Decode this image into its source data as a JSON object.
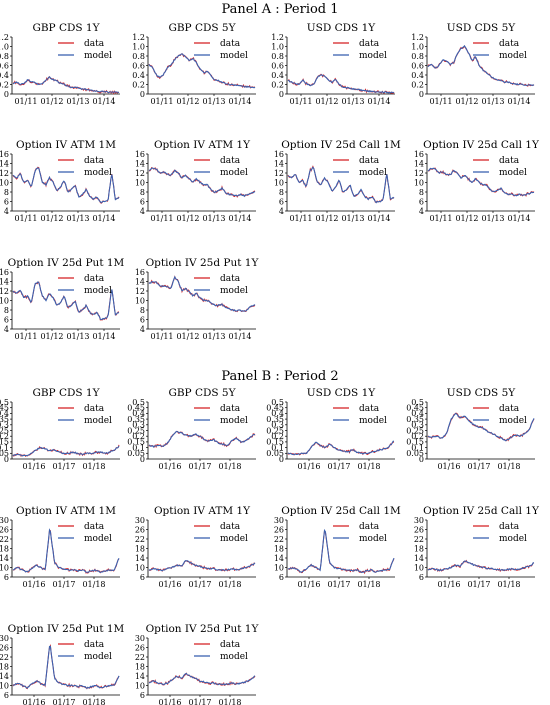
{
  "panels": [
    {
      "title": "Panel A : Period 1",
      "xticks": [
        "01/11",
        "01/12",
        "01/13",
        "01/14"
      ],
      "charts": [
        {
          "title": "GBP CDS 1Y",
          "yticks": [
            "0",
            "0.2",
            "0.4",
            "0.6",
            "0.8",
            "1.0",
            "1.2"
          ],
          "ylim": [
            0,
            1.2
          ],
          "profile": "cds_gbp1"
        },
        {
          "title": "GBP CDS 5Y",
          "yticks": [
            "0",
            "0.2",
            "0.4",
            "0.6",
            "0.8",
            "1.0",
            "1.2"
          ],
          "ylim": [
            0,
            1.2
          ],
          "profile": "cds_gbp5"
        },
        {
          "title": "USD CDS 1Y",
          "yticks": [
            "0",
            "0.2",
            "0.4",
            "0.6",
            "0.8",
            "1.0",
            "1.2"
          ],
          "ylim": [
            0,
            1.2
          ],
          "profile": "cds_usd1"
        },
        {
          "title": "USD CDS 5Y",
          "yticks": [
            "0",
            "0.2",
            "0.4",
            "0.6",
            "0.8",
            "1.0",
            "1.2"
          ],
          "ylim": [
            0,
            1.2
          ],
          "profile": "cds_usd5"
        },
        {
          "title": "Option IV ATM 1M",
          "yticks": [
            "4",
            "6",
            "8",
            "10",
            "12",
            "14",
            "16"
          ],
          "ylim": [
            4,
            16
          ],
          "profile": "iv_1m"
        },
        {
          "title": "Option IV ATM 1Y",
          "yticks": [
            "4",
            "6",
            "8",
            "10",
            "12",
            "14",
            "16"
          ],
          "ylim": [
            4,
            16
          ],
          "profile": "iv_1y"
        },
        {
          "title": "Option IV 25d Call 1M",
          "yticks": [
            "4",
            "6",
            "8",
            "10",
            "12",
            "14",
            "16"
          ],
          "ylim": [
            4,
            16
          ],
          "profile": "iv_1m"
        },
        {
          "title": "Option IV 25d Call 1Y",
          "yticks": [
            "4",
            "6",
            "8",
            "10",
            "12",
            "14",
            "16"
          ],
          "ylim": [
            4,
            16
          ],
          "profile": "iv_1y"
        },
        {
          "title": "Option IV 25d Put 1M",
          "yticks": [
            "4",
            "6",
            "8",
            "10",
            "12",
            "14",
            "16"
          ],
          "ylim": [
            4,
            16
          ],
          "profile": "iv_put1m"
        },
        {
          "title": "Option IV 25d Put 1Y",
          "yticks": [
            "4",
            "6",
            "8",
            "10",
            "12",
            "14",
            "16"
          ],
          "ylim": [
            4,
            16
          ],
          "profile": "iv_put1y"
        }
      ]
    },
    {
      "title": "Panel B : Period 2",
      "xticks": [
        "01/16",
        "01/17",
        "01/18"
      ],
      "charts": [
        {
          "title": "GBP CDS 1Y",
          "yticks": [
            "0",
            "0.05",
            "0.1",
            "0.15",
            "0.2",
            "0.25",
            "0.3",
            "0.35",
            "0.4",
            "0.45",
            "0.5"
          ],
          "ylim": [
            0,
            0.5
          ],
          "profile": "b_gbp1"
        },
        {
          "title": "GBP CDS 5Y",
          "yticks": [
            "0",
            "0.05",
            "0.1",
            "0.15",
            "0.2",
            "0.25",
            "0.3",
            "0.35",
            "0.4",
            "0.45",
            "0.5"
          ],
          "ylim": [
            0,
            0.5
          ],
          "profile": "b_gbp5"
        },
        {
          "title": "USD CDS 1Y",
          "yticks": [
            "0",
            "0.05",
            "0.1",
            "0.15",
            "0.2",
            "0.25",
            "0.3",
            "0.35",
            "0.4",
            "0.45",
            "0.5"
          ],
          "ylim": [
            0,
            0.5
          ],
          "profile": "b_usd1"
        },
        {
          "title": "USD CDS 5Y",
          "yticks": [
            "0",
            "0.05",
            "0.1",
            "0.15",
            "0.2",
            "0.25",
            "0.3",
            "0.35",
            "0.4",
            "0.45",
            "0.5"
          ],
          "ylim": [
            0,
            0.5
          ],
          "profile": "b_usd5"
        },
        {
          "title": "Option IV ATM 1M",
          "yticks": [
            "6",
            "10",
            "14",
            "18",
            "22",
            "26",
            "30"
          ],
          "ylim": [
            6,
            30
          ],
          "profile": "b_iv1m"
        },
        {
          "title": "Option IV ATM 1Y",
          "yticks": [
            "6",
            "10",
            "14",
            "18",
            "22",
            "26",
            "30"
          ],
          "ylim": [
            6,
            30
          ],
          "profile": "b_iv1y"
        },
        {
          "title": "Option IV 25d Call 1M",
          "yticks": [
            "6",
            "10",
            "14",
            "18",
            "22",
            "26",
            "30"
          ],
          "ylim": [
            6,
            30
          ],
          "profile": "b_iv1m"
        },
        {
          "title": "Option IV 25d Call 1Y",
          "yticks": [
            "6",
            "10",
            "14",
            "18",
            "22",
            "26",
            "30"
          ],
          "ylim": [
            6,
            30
          ],
          "profile": "b_iv1y"
        },
        {
          "title": "Option IV 25d Put 1M",
          "yticks": [
            "6",
            "10",
            "14",
            "18",
            "22",
            "26",
            "30"
          ],
          "ylim": [
            6,
            30
          ],
          "profile": "b_put1m"
        },
        {
          "title": "Option IV 25d Put 1Y",
          "yticks": [
            "6",
            "10",
            "14",
            "18",
            "22",
            "26",
            "30"
          ],
          "ylim": [
            6,
            30
          ],
          "profile": "b_put1y"
        }
      ]
    }
  ],
  "legend": {
    "data_label": "data",
    "model_label": "model"
  },
  "colors": {
    "data": "#d62728",
    "model": "#3b62b0"
  },
  "chart_data": {
    "type": "line",
    "series": [
      {
        "name": "data"
      },
      {
        "name": "model"
      }
    ],
    "profiles": {
      "cds_gbp1": [
        0.22,
        0.25,
        0.2,
        0.22,
        0.3,
        0.26,
        0.24,
        0.2,
        0.22,
        0.3,
        0.35,
        0.3,
        0.28,
        0.22,
        0.2,
        0.16,
        0.14,
        0.15,
        0.12,
        0.1,
        0.1,
        0.08,
        0.07,
        0.06,
        0.05,
        0.05,
        0.04,
        0.04,
        0.04,
        0.03
      ],
      "cds_gbp5": [
        0.62,
        0.55,
        0.4,
        0.35,
        0.42,
        0.55,
        0.62,
        0.72,
        0.8,
        0.85,
        0.78,
        0.7,
        0.75,
        0.65,
        0.52,
        0.45,
        0.48,
        0.38,
        0.3,
        0.28,
        0.25,
        0.22,
        0.2,
        0.2,
        0.18,
        0.17,
        0.16,
        0.15,
        0.15,
        0.14
      ],
      "cds_usd1": [
        0.28,
        0.25,
        0.22,
        0.2,
        0.3,
        0.22,
        0.18,
        0.2,
        0.35,
        0.4,
        0.38,
        0.3,
        0.25,
        0.3,
        0.2,
        0.15,
        0.13,
        0.12,
        0.1,
        0.1,
        0.08,
        0.07,
        0.06,
        0.05,
        0.05,
        0.05,
        0.04,
        0.04,
        0.03,
        0.03
      ],
      "cds_usd5": [
        0.58,
        0.62,
        0.55,
        0.6,
        0.72,
        0.7,
        0.62,
        0.66,
        0.85,
        0.95,
        1.02,
        0.88,
        0.7,
        0.78,
        0.6,
        0.5,
        0.45,
        0.38,
        0.33,
        0.3,
        0.28,
        0.25,
        0.25,
        0.22,
        0.21,
        0.2,
        0.2,
        0.19,
        0.19,
        0.18
      ],
      "iv_1m": [
        11.5,
        11,
        11.8,
        10,
        10.5,
        9,
        12.5,
        13.2,
        10,
        9.5,
        11,
        10,
        8.2,
        9,
        10.5,
        8,
        8.5,
        9.5,
        7,
        7.5,
        8.5,
        7,
        6.5,
        7,
        5.8,
        6,
        6.2,
        12,
        6.5,
        6.8
      ],
      "iv_1y": [
        12.5,
        13,
        12.8,
        12,
        12.2,
        11.8,
        11.5,
        12.5,
        12,
        11,
        11.5,
        10.8,
        10,
        10.8,
        10,
        9.5,
        9.5,
        8.5,
        8,
        8.3,
        8.8,
        7.8,
        7.5,
        7.5,
        7.2,
        7.5,
        7.2,
        7.5,
        7.8,
        8
      ],
      "iv_put1m": [
        12,
        11.5,
        12.2,
        10.5,
        11,
        9.5,
        13.5,
        14,
        11,
        10,
        11.5,
        10.5,
        9,
        9.5,
        11,
        8.5,
        9,
        10,
        7.5,
        8,
        9,
        7.5,
        7,
        7.5,
        6,
        6.2,
        6.5,
        12.5,
        7,
        7.5
      ],
      "iv_put1y": [
        13.5,
        14,
        13.8,
        13,
        13,
        12.8,
        12.5,
        15,
        14,
        12,
        12.5,
        11.8,
        11,
        11.5,
        10.5,
        10,
        10,
        9.5,
        9,
        9,
        9.2,
        8.5,
        8.2,
        8,
        7.8,
        8,
        7.6,
        8.2,
        8.8,
        9.2
      ],
      "b_gbp1": [
        0.03,
        0.04,
        0.03,
        0.03,
        0.05,
        0.08,
        0.1,
        0.09,
        0.07,
        0.08,
        0.06,
        0.05,
        0.05,
        0.06,
        0.05,
        0.04,
        0.05,
        0.05,
        0.06,
        0.06,
        0.05,
        0.06,
        0.08,
        0.11
      ],
      "b_gbp5": [
        0.12,
        0.11,
        0.12,
        0.11,
        0.14,
        0.2,
        0.24,
        0.23,
        0.21,
        0.2,
        0.22,
        0.2,
        0.17,
        0.16,
        0.17,
        0.14,
        0.13,
        0.12,
        0.16,
        0.18,
        0.15,
        0.16,
        0.19,
        0.22
      ],
      "b_usd1": [
        0.05,
        0.04,
        0.04,
        0.05,
        0.05,
        0.1,
        0.15,
        0.12,
        0.1,
        0.13,
        0.1,
        0.08,
        0.07,
        0.06,
        0.08,
        0.06,
        0.05,
        0.05,
        0.06,
        0.07,
        0.08,
        0.09,
        0.11,
        0.16
      ],
      "b_usd5": [
        0.2,
        0.19,
        0.2,
        0.18,
        0.22,
        0.35,
        0.4,
        0.36,
        0.38,
        0.33,
        0.3,
        0.28,
        0.27,
        0.24,
        0.22,
        0.2,
        0.18,
        0.16,
        0.19,
        0.21,
        0.2,
        0.22,
        0.26,
        0.36
      ],
      "b_iv1m": [
        9,
        10,
        9,
        8,
        9.5,
        11,
        10,
        9,
        27,
        12,
        10,
        9.5,
        9,
        9,
        8.5,
        9,
        8,
        8.5,
        9,
        8,
        8.5,
        9,
        9,
        14
      ],
      "b_iv1y": [
        9,
        9.5,
        9,
        8.8,
        9.5,
        10,
        11,
        10.5,
        13,
        12,
        11,
        10.5,
        10,
        9.5,
        9.5,
        9,
        9,
        9,
        9.5,
        9,
        9.5,
        10,
        10.5,
        12
      ],
      "b_put1m": [
        10,
        11,
        10,
        9,
        10.5,
        12,
        11,
        10,
        28,
        13,
        11,
        10.5,
        10,
        10,
        9.5,
        10,
        9,
        9.5,
        10,
        9,
        9.5,
        10,
        10,
        14
      ],
      "b_put1y": [
        11,
        12,
        11,
        10.5,
        11,
        12.5,
        14,
        13,
        15,
        14,
        13,
        12,
        11.5,
        11,
        11,
        10.5,
        10.5,
        10.5,
        11,
        10.5,
        11,
        11.5,
        12.5,
        14
      ]
    }
  }
}
